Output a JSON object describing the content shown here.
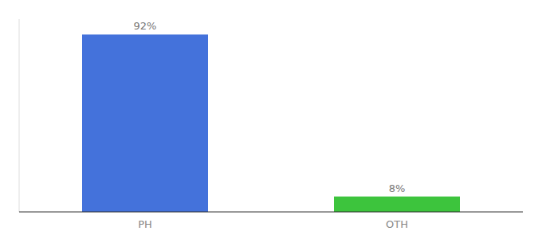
{
  "chart_data": {
    "type": "bar",
    "categories": [
      "PH",
      "OTH"
    ],
    "values": [
      92,
      8
    ],
    "value_labels": [
      "92%",
      "8%"
    ],
    "colors": [
      "#4472db",
      "#3dc43d"
    ],
    "ylim": [
      0,
      100
    ],
    "yticks": [],
    "grid": false,
    "data_labels": true,
    "tick_labels": "x"
  }
}
